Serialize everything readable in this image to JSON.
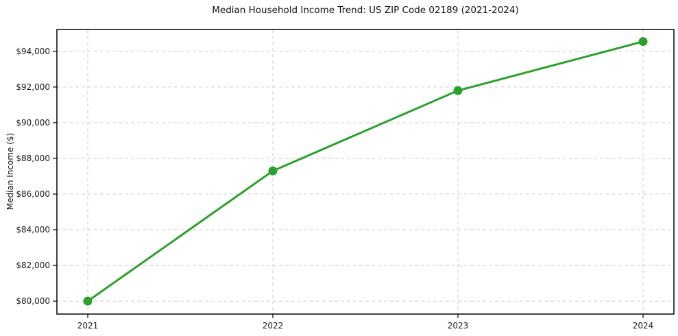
{
  "chart_data": {
    "type": "line",
    "title": "Median Household Income Trend: US ZIP Code 02189 (2021-2024)",
    "xlabel": "",
    "ylabel": "Median Income ($)",
    "categories": [
      "2021",
      "2022",
      "2023",
      "2024"
    ],
    "values": [
      80000,
      87300,
      91800,
      94550
    ],
    "ylim": [
      79275,
      95225
    ],
    "yticks": [
      80000,
      82000,
      84000,
      86000,
      88000,
      90000,
      92000,
      94000
    ],
    "ytick_labels": [
      "$80,000",
      "$82,000",
      "$84,000",
      "$86,000",
      "$88,000",
      "$90,000",
      "$92,000",
      "$94,000"
    ],
    "grid": true,
    "legend": "none",
    "line_color": "#2ca02c",
    "grid_color": "#cccccc",
    "axis_color": "#000000",
    "marker": "circle"
  }
}
